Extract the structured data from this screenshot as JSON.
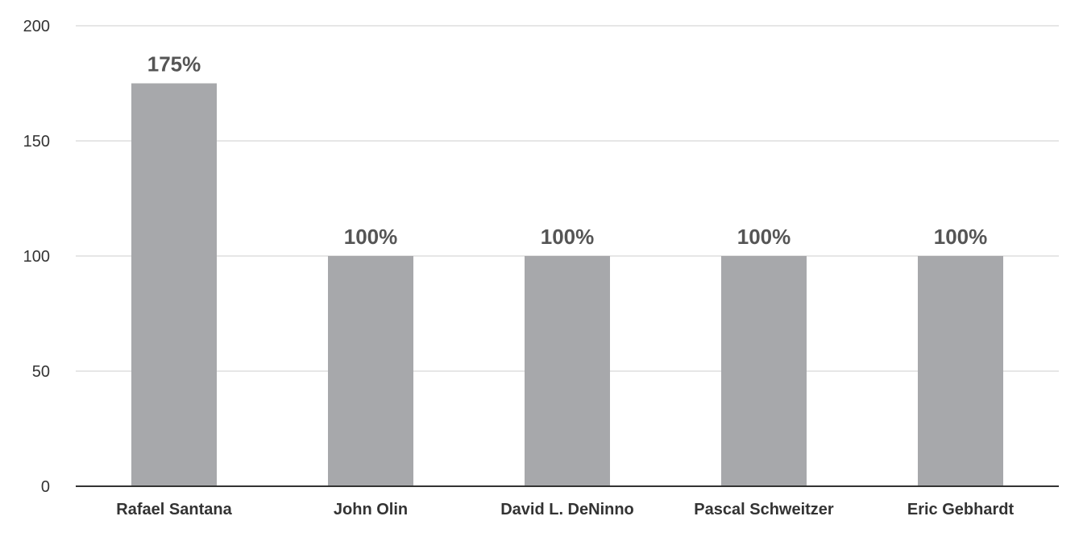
{
  "chart_data": {
    "type": "bar",
    "categories": [
      "Rafael Santana",
      "John Olin",
      "David L. DeNinno",
      "Pascal Schweitzer",
      "Eric Gebhardt"
    ],
    "values": [
      175,
      100,
      100,
      100,
      100
    ],
    "data_labels": [
      "175%",
      "100%",
      "100%",
      "100%",
      "100%"
    ],
    "y_ticks": [
      "0",
      "50",
      "100",
      "150",
      "200"
    ],
    "y_tick_values": [
      0,
      50,
      100,
      150,
      200
    ],
    "ylim": [
      0,
      200
    ],
    "title": "",
    "xlabel": "",
    "ylabel": "",
    "grid": true,
    "legend": "none",
    "colors": {
      "bar": "#a7a8ab",
      "grid": "#e6e6e6",
      "axis": "#333333",
      "label": "#555555",
      "tick": "#333333"
    }
  }
}
